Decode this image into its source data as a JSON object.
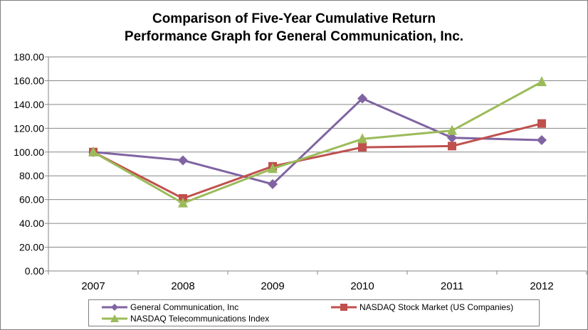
{
  "chart_data": {
    "type": "line",
    "title": [
      "Comparison of Five-Year Cumulative Return",
      "Performance Graph for General Communication, Inc."
    ],
    "xlabel": "",
    "ylabel": "",
    "categories": [
      "2007",
      "2008",
      "2009",
      "2010",
      "2011",
      "2012"
    ],
    "ylim": [
      0,
      180
    ],
    "yticks": [
      "0.00",
      "20.00",
      "40.00",
      "60.00",
      "80.00",
      "100.00",
      "120.00",
      "140.00",
      "160.00",
      "180.00"
    ],
    "grid": "horizontal",
    "legend_position": "bottom",
    "series": [
      {
        "name": "General Communication, Inc",
        "values": [
          100,
          93,
          73,
          145,
          112,
          110
        ],
        "color": "#8064a2",
        "marker": "diamond"
      },
      {
        "name": "NASDAQ Stock Market (US Companies)",
        "values": [
          100,
          61,
          88,
          104,
          105,
          124
        ],
        "color": "#c0504d",
        "marker": "square"
      },
      {
        "name": "NASDAQ Telecommunications Index",
        "values": [
          100,
          57,
          86,
          111,
          118,
          159
        ],
        "color": "#9bbb59",
        "marker": "triangle"
      }
    ]
  }
}
